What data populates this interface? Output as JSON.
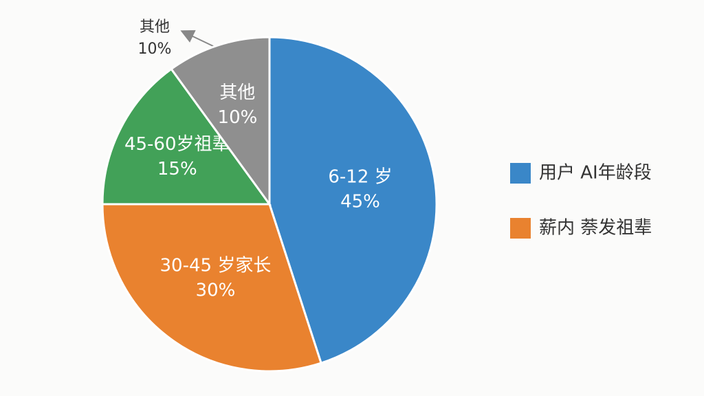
{
  "chart_data": {
    "type": "pie",
    "categories": [
      "6-12 岁",
      "30-45 岁家长",
      "45-60岁祖辈",
      "其他"
    ],
    "values": [
      45,
      30,
      15,
      10
    ],
    "value_labels": [
      "45%",
      "30%",
      "15%",
      "10%"
    ],
    "colors": [
      "#3a87c8",
      "#e9822f",
      "#42a158",
      "#8f8f8f"
    ],
    "legend": [
      {
        "label": "用户 AI年龄段",
        "color": "#3a87c8"
      },
      {
        "label": "薪内 萘发祖辈",
        "color": "#e9822f"
      }
    ],
    "annotation": {
      "label": "其他",
      "value_label": "10%"
    }
  }
}
